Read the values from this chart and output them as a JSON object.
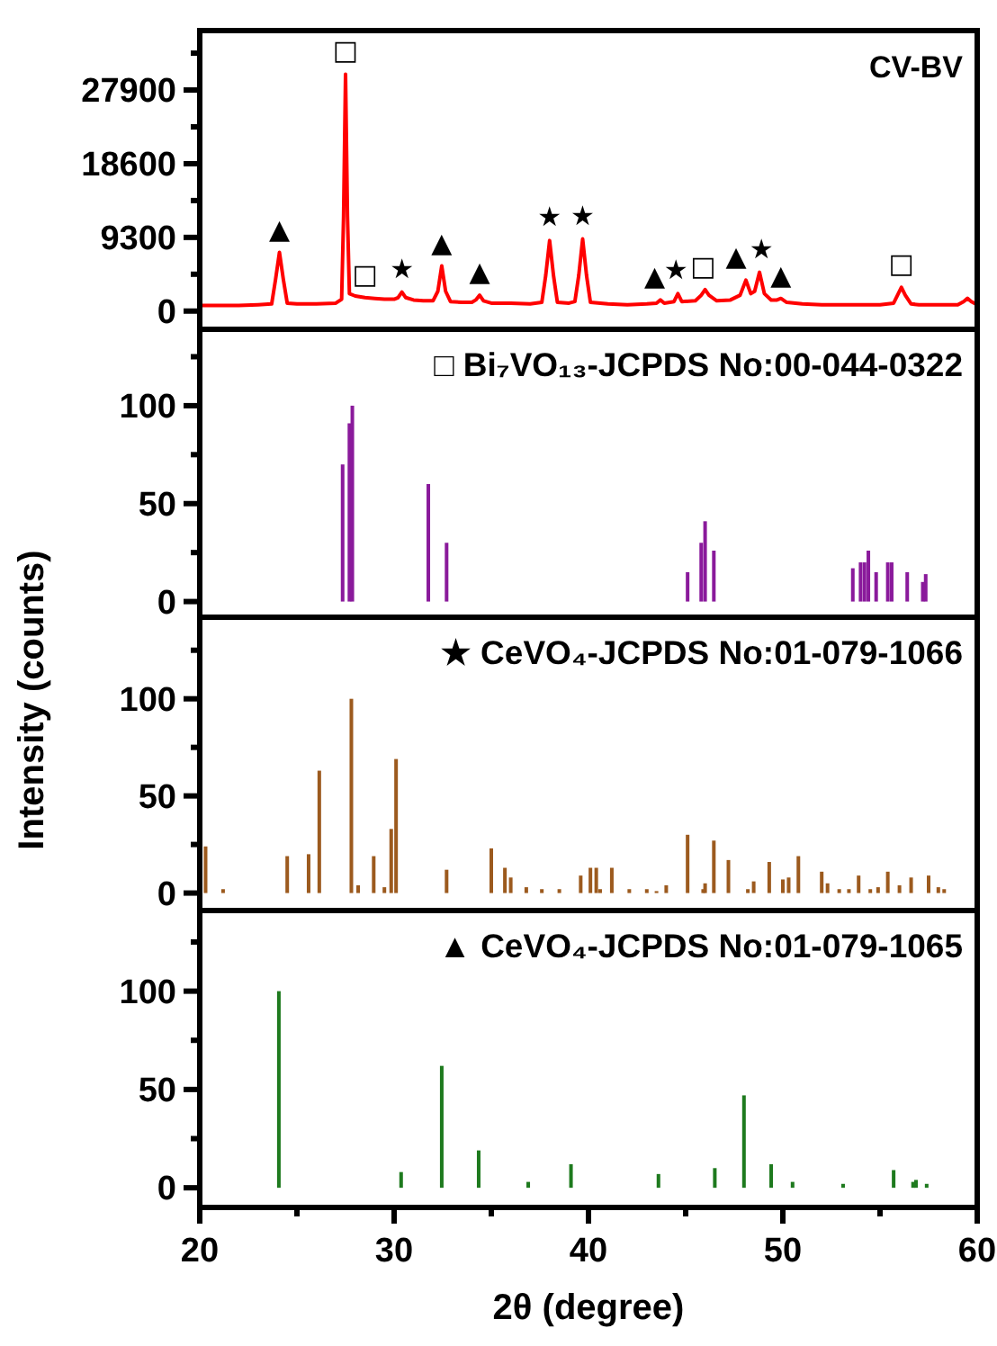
{
  "chart_data": [
    {
      "type": "line",
      "title": "CV-BV",
      "xlim": [
        20,
        60
      ],
      "ylim": [
        -2300,
        35400
      ],
      "yticks": [
        0,
        {
          "value": 4650,
          "label": null
        },
        9300,
        {
          "value": 13950,
          "label": null
        },
        18600,
        {
          "value": 23250,
          "label": null
        },
        27900,
        {
          "value": 32550,
          "label": null
        }
      ],
      "tick_labels": "y",
      "series": [
        {
          "color": "#ff0000",
          "x": [
            20,
            21,
            22,
            23,
            23.7,
            23.9,
            24.1,
            24.3,
            24.5,
            25,
            26,
            27,
            27.3,
            27.4,
            27.5,
            27.6,
            27.7,
            28,
            28.5,
            29,
            29.5,
            30,
            30.2,
            30.4,
            30.6,
            31,
            31.5,
            32,
            32.25,
            32.45,
            32.65,
            32.9,
            33.5,
            34,
            34.2,
            34.4,
            34.6,
            35,
            36,
            37,
            37.6,
            37.8,
            38,
            38.2,
            38.4,
            39,
            39.3,
            39.5,
            39.7,
            39.9,
            40.1,
            41,
            42,
            43,
            43.5,
            43.7,
            43.9,
            44.4,
            44.6,
            44.8,
            45.5,
            45.8,
            46,
            46.2,
            46.6,
            47.3,
            47.8,
            48.1,
            48.35,
            48.55,
            48.8,
            49.05,
            49.4,
            49.7,
            49.9,
            50.2,
            51,
            52,
            53,
            54,
            55,
            55.7,
            55.9,
            56.1,
            56.3,
            56.6,
            57,
            58,
            59,
            59.3,
            59.5,
            59.7,
            60
          ],
          "values": [
            700,
            700,
            700,
            800,
            900,
            4000,
            7400,
            4000,
            1000,
            900,
            900,
            1000,
            1500,
            12000,
            29900,
            12000,
            2200,
            1900,
            1700,
            1600,
            1500,
            1500,
            1700,
            2400,
            1700,
            1400,
            1300,
            1300,
            2500,
            5700,
            2500,
            1200,
            1100,
            1100,
            1400,
            2000,
            1300,
            1000,
            1000,
            900,
            1100,
            4500,
            8900,
            4500,
            1100,
            1000,
            1200,
            4500,
            9100,
            4500,
            1100,
            900,
            800,
            900,
            1000,
            1400,
            1000,
            1200,
            2200,
            1200,
            1300,
            2000,
            2700,
            2000,
            1300,
            1400,
            2000,
            3900,
            2200,
            2500,
            4900,
            2200,
            1400,
            1400,
            1600,
            1100,
            900,
            800,
            800,
            800,
            800,
            1000,
            2000,
            3000,
            2000,
            900,
            800,
            800,
            800,
            1200,
            1600,
            1200,
            800
          ]
        }
      ],
      "annotations": [
        {
          "text": "▲",
          "x": 24.1,
          "y": 7400
        },
        {
          "text": "□",
          "x": 27.5,
          "y": 29900
        },
        {
          "text": "□",
          "x": 28.5,
          "y": 1700
        },
        {
          "text": "★",
          "x": 30.4,
          "y": 2400
        },
        {
          "text": "▲",
          "x": 32.45,
          "y": 5700
        },
        {
          "text": "▲",
          "x": 34.4,
          "y": 2000
        },
        {
          "text": "★",
          "x": 38,
          "y": 8900
        },
        {
          "text": "★",
          "x": 39.7,
          "y": 9100
        },
        {
          "text": "▲",
          "x": 43.4,
          "y": 1400
        },
        {
          "text": "★",
          "x": 44.5,
          "y": 2200
        },
        {
          "text": "□",
          "x": 45.9,
          "y": 2700
        },
        {
          "text": "▲",
          "x": 47.6,
          "y": 3900
        },
        {
          "text": "★",
          "x": 48.9,
          "y": 4900
        },
        {
          "text": "▲",
          "x": 49.9,
          "y": 1600
        },
        {
          "text": "□",
          "x": 56.1,
          "y": 3000
        }
      ]
    },
    {
      "type": "bar",
      "title": "□ Bi₇VO₁₃-JCPDS No:00-044-0322",
      "ylabel": "Intensity (counts)",
      "xlim": [
        20,
        60
      ],
      "ylim": [
        -8,
        139
      ],
      "yticks": [
        0,
        {
          "value": 25,
          "label": null
        },
        50,
        {
          "value": 75,
          "label": null
        },
        100,
        {
          "value": 125,
          "label": null
        }
      ],
      "tick_labels": "y",
      "series": [
        {
          "color": "#8a1a9b",
          "x": [
            27.35,
            27.7,
            27.85,
            31.76,
            32.7,
            45.1,
            45.8,
            46.0,
            46.45,
            53.6,
            54.0,
            54.2,
            54.4,
            54.8,
            55.4,
            55.6,
            56.4,
            57.2,
            57.35
          ],
          "values": [
            70,
            91,
            100,
            60,
            30,
            15,
            30,
            41,
            26,
            17,
            20,
            20,
            26,
            15,
            20,
            20,
            15,
            10,
            14
          ]
        }
      ]
    },
    {
      "type": "bar",
      "title": "★ CeVO₄-JCPDS No:01-079-1066",
      "xlim": [
        20,
        60
      ],
      "ylim": [
        -9,
        142
      ],
      "yticks": [
        0,
        {
          "value": 25,
          "label": null
        },
        50,
        {
          "value": 75,
          "label": null
        },
        100,
        {
          "value": 125,
          "label": null
        }
      ],
      "tick_labels": "y",
      "series": [
        {
          "color": "#9c5a1e",
          "x": [
            20.3,
            21.2,
            24.5,
            25.6,
            26.15,
            27.8,
            28.15,
            28.95,
            29.5,
            29.85,
            30.1,
            32.7,
            35.0,
            35.7,
            36.0,
            36.8,
            37.6,
            38.5,
            39.6,
            40.1,
            40.4,
            40.6,
            41.2,
            42.1,
            43.0,
            43.5,
            44.0,
            45.1,
            45.9,
            46.0,
            46.45,
            47.2,
            48.2,
            48.5,
            49.3,
            50.0,
            50.3,
            50.8,
            52.0,
            52.3,
            52.9,
            53.4,
            53.9,
            54.5,
            54.9,
            55.4,
            56.0,
            56.6,
            57.5,
            58.0,
            58.3
          ],
          "values": [
            24,
            2,
            19,
            20,
            63,
            100,
            4,
            19,
            3,
            33,
            69,
            12,
            23,
            13,
            8,
            3,
            2,
            2,
            9,
            13,
            13,
            2,
            13,
            2,
            2,
            1,
            4,
            30,
            2,
            5,
            27,
            17,
            2,
            6,
            16,
            7,
            8,
            19,
            11,
            5,
            2,
            2,
            9,
            2,
            3,
            11,
            4,
            8,
            9,
            3,
            2
          ]
        }
      ]
    },
    {
      "type": "bar",
      "title": "▲ CeVO₄-JCPDS No:01-079-1065",
      "xlabel": "2θ (degree)",
      "xlim": [
        20,
        60
      ],
      "xticks": [
        20,
        {
          "value": 25,
          "label": null
        },
        30,
        {
          "value": 35,
          "label": null
        },
        40,
        {
          "value": 45,
          "label": null
        },
        50,
        {
          "value": 55,
          "label": null
        },
        60
      ],
      "ylim": [
        -10,
        141
      ],
      "yticks": [
        0,
        {
          "value": 25,
          "label": null
        },
        50,
        {
          "value": 75,
          "label": null
        },
        100,
        {
          "value": 125,
          "label": null
        }
      ],
      "series": [
        {
          "color": "#1e7a1e",
          "x": [
            24.07,
            30.36,
            32.45,
            34.35,
            36.9,
            39.1,
            43.6,
            46.5,
            48.0,
            49.4,
            50.5,
            53.1,
            55.7,
            56.7,
            56.85,
            57.4
          ],
          "values": [
            100,
            8,
            62,
            19,
            3,
            12,
            7,
            10,
            47,
            12,
            3,
            2,
            9,
            3,
            4,
            2
          ]
        }
      ]
    }
  ]
}
